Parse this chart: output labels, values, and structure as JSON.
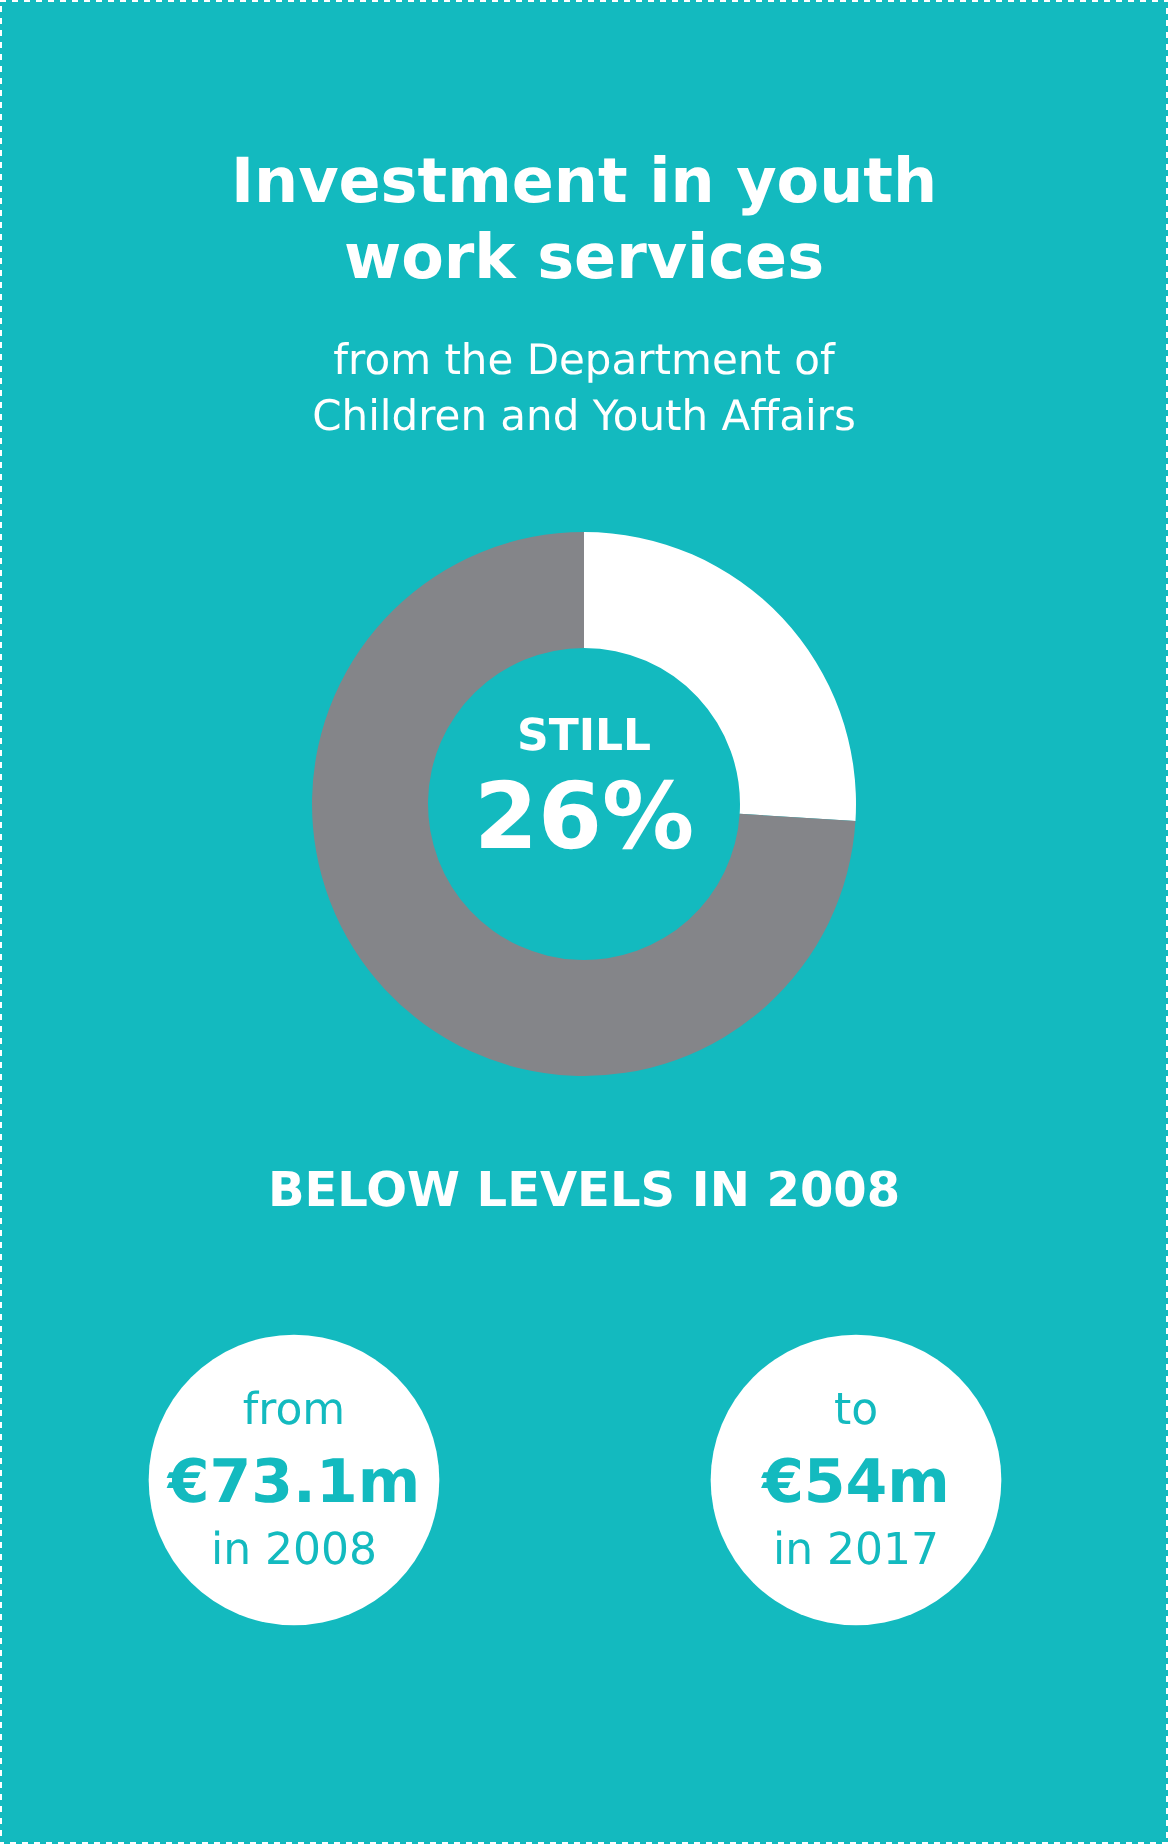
{
  "chart_data": {
    "type": "donut",
    "title": "Investment in youth work services",
    "subtitle": "from the Department of Children and Youth Affairs",
    "categories": [
      null,
      null
    ],
    "values": [
      26,
      74
    ],
    "colors": [
      "#ffffff",
      "#848589"
    ],
    "annotations": [
      "STILL",
      "26%",
      "BELOW LEVELS IN 2008",
      "from",
      "€73.1m",
      "in 2008",
      "to",
      "€54m",
      "in 2017"
    ]
  }
}
